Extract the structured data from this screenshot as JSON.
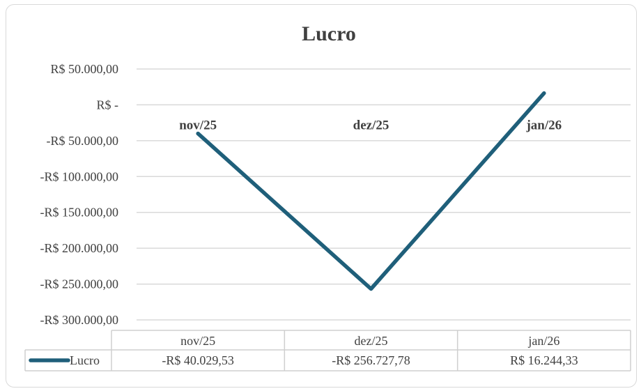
{
  "chart_data": {
    "type": "line",
    "title": "Lucro",
    "categories": [
      "nov/25",
      "dez/25",
      "jan/26"
    ],
    "series": [
      {
        "name": "Lucro",
        "values": [
          -40029.53,
          -256727.78,
          16244.33
        ],
        "color": "#1f5f7a"
      }
    ],
    "ylim": [
      -300000,
      50000
    ],
    "y_ticks": [
      {
        "value": 50000,
        "label": "R$ 50.000,00"
      },
      {
        "value": 0,
        "label": "R$ -"
      },
      {
        "value": -50000,
        "label": "-R$ 50.000,00"
      },
      {
        "value": -100000,
        "label": "-R$ 100.000,00"
      },
      {
        "value": -150000,
        "label": "-R$ 150.000,00"
      },
      {
        "value": -200000,
        "label": "-R$ 200.000,00"
      },
      {
        "value": -250000,
        "label": "-R$ 250.000,00"
      },
      {
        "value": -300000,
        "label": "-R$ 300.000,00"
      }
    ],
    "grid": true,
    "legend": "data-table",
    "data_table": {
      "series_label": "Lucro",
      "values": [
        "-R$ 40.029,53",
        "-R$ 256.727,78",
        "R$ 16.244,33"
      ]
    },
    "gridline_color": "#d9d9d9",
    "text_color": "#404040"
  }
}
